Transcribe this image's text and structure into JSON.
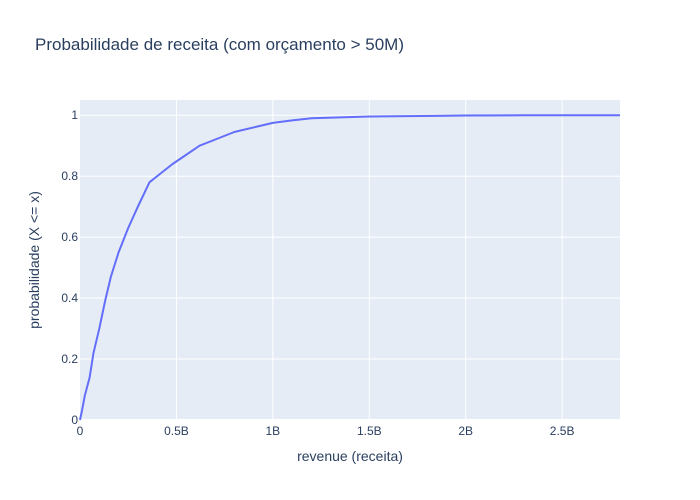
{
  "chart_data": {
    "type": "line",
    "title": "Probabilidade de receita (com orçamento > 50M)",
    "xlabel": "revenue (receita)",
    "ylabel": "probabilidade (X <= x)",
    "xlim": [
      0,
      2800000000
    ],
    "ylim": [
      0,
      1.05
    ],
    "grid": true,
    "x_ticks": [
      {
        "value": 0,
        "label": "0"
      },
      {
        "value": 500000000,
        "label": "0.5B"
      },
      {
        "value": 1000000000,
        "label": "1B"
      },
      {
        "value": 1500000000,
        "label": "1.5B"
      },
      {
        "value": 2000000000,
        "label": "2B"
      },
      {
        "value": 2500000000,
        "label": "2.5B"
      }
    ],
    "y_ticks": [
      {
        "value": 0,
        "label": "0"
      },
      {
        "value": 0.2,
        "label": "0.2"
      },
      {
        "value": 0.4,
        "label": "0.4"
      },
      {
        "value": 0.6,
        "label": "0.6"
      },
      {
        "value": 0.8,
        "label": "0.8"
      },
      {
        "value": 1,
        "label": "1"
      }
    ],
    "series": [
      {
        "color": "#636efa",
        "x": [
          0,
          10000000,
          25000000,
          50000000,
          70000000,
          100000000,
          130000000,
          160000000,
          200000000,
          250000000,
          300000000,
          360000000,
          420000000,
          480000000,
          550000000,
          620000000,
          700000000,
          800000000,
          900000000,
          1000000000,
          1100000000,
          1200000000,
          1350000000,
          1500000000,
          1700000000,
          1850000000,
          2000000000,
          2300000000,
          2800000000
        ],
        "y": [
          0,
          0.03,
          0.08,
          0.14,
          0.22,
          0.3,
          0.39,
          0.47,
          0.55,
          0.63,
          0.7,
          0.78,
          0.81,
          0.84,
          0.87,
          0.9,
          0.92,
          0.945,
          0.96,
          0.975,
          0.983,
          0.99,
          0.993,
          0.996,
          0.997,
          0.998,
          0.999,
          1,
          1
        ]
      }
    ]
  }
}
